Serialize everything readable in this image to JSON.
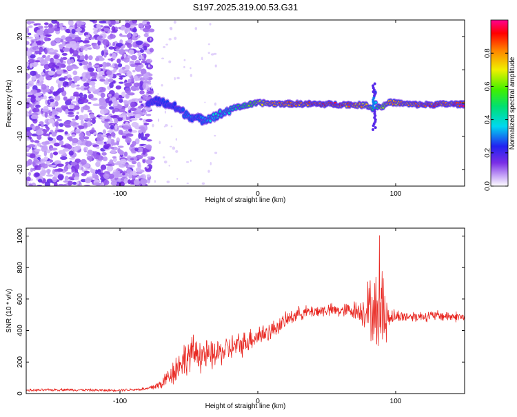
{
  "title": "S197.2025.319.00.53.G31",
  "chart_data": [
    {
      "type": "heatmap",
      "title": "S197.2025.319.00.53.G31",
      "xlabel": "Height of straight line (km)",
      "ylabel": "Frequency (Hz)",
      "xlim": [
        -168,
        150
      ],
      "ylim": [
        -25,
        25
      ],
      "xticks": [
        -100,
        0,
        100
      ],
      "yticks": [
        -20,
        -10,
        0,
        10,
        20
      ],
      "xtick_labels": [
        "-100",
        "0",
        "100"
      ],
      "ytick_labels": [
        "-20",
        "-10",
        "0",
        "10",
        "20"
      ],
      "noise_region_end_km": -80,
      "ridge": {
        "x": [
          -80,
          -75,
          -70,
          -65,
          -60,
          -55,
          -50,
          -45,
          -40,
          -35,
          -30,
          -25,
          -20,
          -15,
          -10,
          -5,
          0,
          5,
          10,
          20,
          40,
          60,
          70,
          80,
          84,
          85,
          86,
          90,
          95,
          100,
          110,
          120,
          130,
          140,
          148
        ],
        "y": [
          0,
          0.6,
          0.3,
          -0.4,
          -1.2,
          -2.6,
          -3.8,
          -4.6,
          -5.0,
          -4.4,
          -3.8,
          -3.0,
          -2.0,
          -1.2,
          -0.8,
          -0.4,
          0,
          0,
          -0.2,
          -0.2,
          -0.3,
          -0.4,
          -0.5,
          -0.7,
          -2.0,
          3.0,
          -1.0,
          -1.2,
          0.2,
          0.1,
          -0.4,
          -0.5,
          -0.4,
          -0.3,
          -0.4
        ],
        "amplitude": [
          0.2,
          0.2,
          0.25,
          0.25,
          0.25,
          0.3,
          0.3,
          0.3,
          0.3,
          0.35,
          0.4,
          0.4,
          0.45,
          0.5,
          0.55,
          0.6,
          0.7,
          0.75,
          0.8,
          0.85,
          0.9,
          0.9,
          0.85,
          0.8,
          0.5,
          0.3,
          0.5,
          0.7,
          0.8,
          0.8,
          0.85,
          0.9,
          0.9,
          0.9,
          0.95
        ]
      },
      "colorbar": {
        "label": "Normalized spectral amplitude",
        "range": [
          0,
          1
        ],
        "ticks": [
          0.0,
          0.2,
          0.4,
          0.6,
          0.8
        ],
        "tick_labels": [
          "0.0",
          "0.2",
          "0.4",
          "0.6",
          "0.8"
        ]
      }
    },
    {
      "type": "line",
      "xlabel": "Height of straight line (km)",
      "ylabel": "SNR (10 * v/v)",
      "xlim": [
        -168,
        150
      ],
      "ylim": [
        0,
        1050
      ],
      "xticks": [
        -100,
        0,
        100
      ],
      "yticks": [
        0,
        200,
        400,
        600,
        800,
        1000
      ],
      "xtick_labels": [
        "-100",
        "0",
        "100"
      ],
      "ytick_labels": [
        "0",
        "200",
        "400",
        "600",
        "800",
        "1000"
      ],
      "series": [
        {
          "name": "SNR",
          "color": "#e8251f",
          "x": [
            -168,
            -140,
            -110,
            -90,
            -80,
            -75,
            -70,
            -65,
            -60,
            -55,
            -50,
            -45,
            -40,
            -35,
            -30,
            -25,
            -20,
            -15,
            -10,
            -5,
            0,
            5,
            10,
            15,
            20,
            25,
            30,
            40,
            50,
            60,
            70,
            75,
            80,
            85,
            88,
            90,
            92,
            95,
            100,
            110,
            120,
            130,
            140,
            150
          ],
          "y": [
            20,
            25,
            20,
            25,
            30,
            45,
            60,
            110,
            150,
            210,
            240,
            260,
            250,
            230,
            250,
            270,
            290,
            300,
            320,
            350,
            370,
            380,
            400,
            430,
            460,
            490,
            510,
            520,
            530,
            525,
            530,
            520,
            540,
            520,
            500,
            560,
            510,
            490,
            490,
            490,
            490,
            495,
            490,
            485
          ],
          "jitter": [
            10,
            10,
            10,
            10,
            15,
            30,
            40,
            70,
            110,
            120,
            140,
            130,
            140,
            110,
            110,
            100,
            100,
            100,
            90,
            90,
            90,
            80,
            70,
            60,
            60,
            60,
            50,
            50,
            50,
            50,
            70,
            90,
            220,
            260,
            420,
            360,
            200,
            70,
            50,
            40,
            40,
            40,
            40,
            40
          ]
        }
      ]
    }
  ],
  "colors": {
    "line": "#e8251f",
    "noise": "#6a2fe0",
    "background": "#ffffff",
    "axis": "#000000"
  }
}
